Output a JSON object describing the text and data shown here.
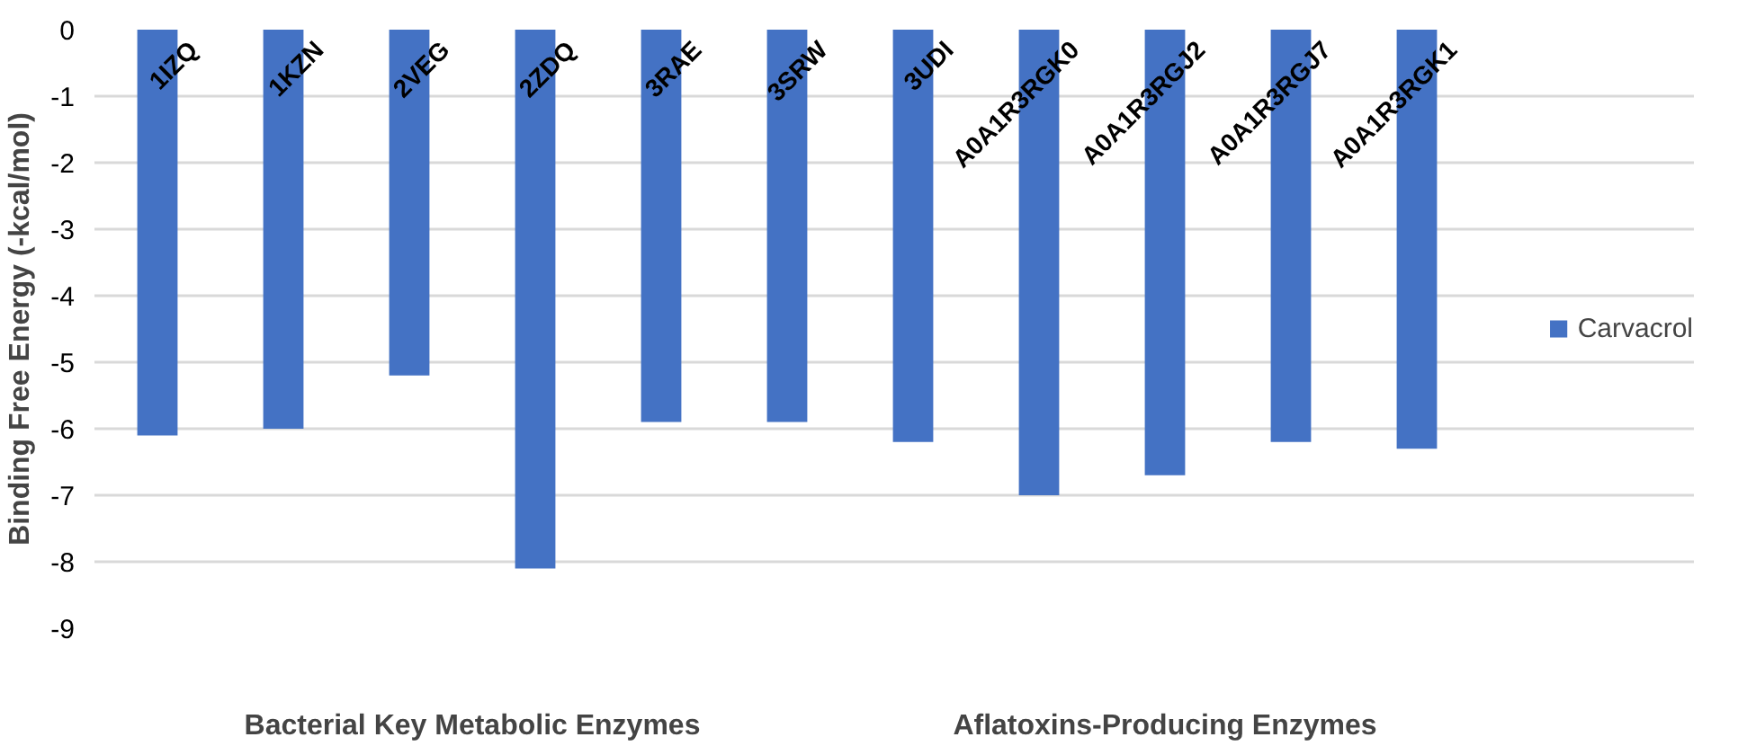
{
  "chart_data": {
    "type": "bar",
    "ylabel": "Binding Free Energy (-kcal/mol)",
    "categories": [
      "1IZQ",
      "1KZN",
      "2VEG",
      "2ZDQ",
      "3RAE",
      "3SRW",
      "3UDI",
      "A0A1R3RGK0",
      "A0A1R3RGJ2",
      "A0A1R3RGJ7",
      "A0A1R3RGK1"
    ],
    "series": [
      {
        "name": "Carvacrol",
        "color": "#4472c4",
        "values": [
          -6.1,
          -6.0,
          -5.2,
          -8.1,
          -5.9,
          -5.9,
          -6.2,
          -7.0,
          -6.7,
          -6.2,
          -6.3
        ]
      }
    ],
    "annotations": [
      "Bacterial Key Metabolic Enzymes",
      "Aflatoxins-Producing Enzymes"
    ],
    "ylim": [
      -9,
      0
    ],
    "yticks": [
      0,
      -1,
      -2,
      -3,
      -4,
      -5,
      -6,
      -7,
      -8,
      -9
    ],
    "grid": "y",
    "legend": "right"
  }
}
